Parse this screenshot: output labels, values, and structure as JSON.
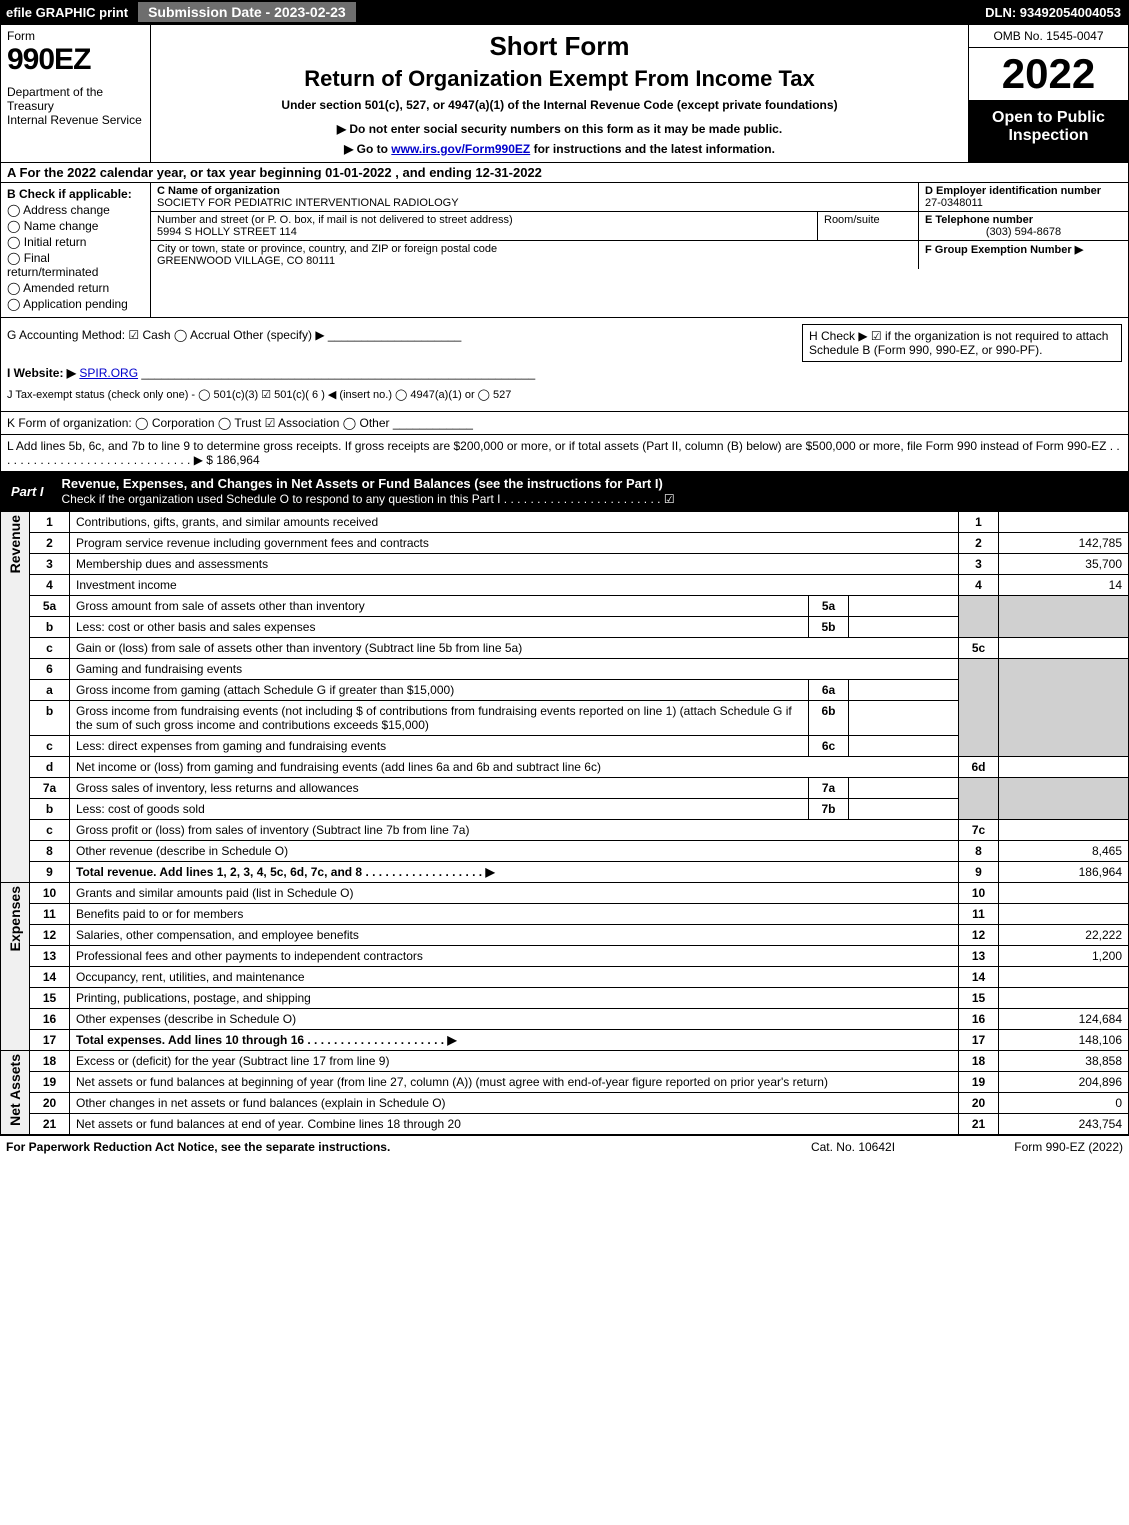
{
  "topbar": {
    "efile": "efile GRAPHIC print",
    "submission": "Submission Date - 2023-02-23",
    "dln": "DLN: 93492054004053"
  },
  "header": {
    "form_label": "Form",
    "form_number": "990EZ",
    "dept": "Department of the Treasury\nInternal Revenue Service",
    "short": "Short Form",
    "title": "Return of Organization Exempt From Income Tax",
    "sub1": "Under section 501(c), 527, or 4947(a)(1) of the Internal Revenue Code (except private foundations)",
    "sub2": "▶ Do not enter social security numbers on this form as it may be made public.",
    "sub3_pre": "▶ Go to ",
    "sub3_link": "www.irs.gov/Form990EZ",
    "sub3_post": " for instructions and the latest information.",
    "omb": "OMB No. 1545-0047",
    "year": "2022",
    "open": "Open to Public Inspection"
  },
  "row_a": "A  For the 2022 calendar year, or tax year beginning 01-01-2022  , and ending 12-31-2022",
  "col_b": {
    "label": "B  Check if applicable:",
    "opts": [
      "Address change",
      "Name change",
      "Initial return",
      "Final return/terminated",
      "Amended return",
      "Application pending"
    ]
  },
  "col_c": {
    "name_label": "C Name of organization",
    "name": "SOCIETY FOR PEDIATRIC INTERVENTIONAL RADIOLOGY",
    "street_label": "Number and street (or P. O. box, if mail is not delivered to street address)",
    "street": "5994 S HOLLY STREET 114",
    "room_label": "Room/suite",
    "city_label": "City or town, state or province, country, and ZIP or foreign postal code",
    "city": "GREENWOOD VILLAGE, CO  80111"
  },
  "col_d": {
    "label": "D Employer identification number",
    "value": "27-0348011"
  },
  "col_e": {
    "label": "E Telephone number",
    "value": "(303) 594-8678"
  },
  "col_f": {
    "label": "F Group Exemption Number  ▶",
    "value": ""
  },
  "row_g": "G Accounting Method:   ☑ Cash  ◯ Accrual  Other (specify) ▶ ____________________",
  "box_h": "H  Check ▶  ☑  if the organization is not required to attach Schedule B (Form 990, 990-EZ, or 990-PF).",
  "row_i_label": "I Website: ▶",
  "row_i_link": "SPIR.ORG",
  "row_j": "J Tax-exempt status (check only one) - ◯ 501(c)(3) ☑ 501(c)( 6 ) ◀ (insert no.) ◯ 4947(a)(1) or ◯ 527",
  "row_k": "K Form of organization:  ◯ Corporation  ◯ Trust  ☑ Association  ◯ Other  ____________",
  "row_l": "L Add lines 5b, 6c, and 7b to line 9 to determine gross receipts. If gross receipts are $200,000 or more, or if total assets (Part II, column (B) below) are $500,000 or more, file Form 990 instead of Form 990-EZ  . . . . . . . . . . . . . . . . . . . . . . . . . . . . . . ▶ $ 186,964",
  "part1": {
    "label": "Part I",
    "title": "Revenue, Expenses, and Changes in Net Assets or Fund Balances (see the instructions for Part I)",
    "subtitle": "Check if the organization used Schedule O to respond to any question in this Part I . . . . . . . . . . . . . . . . . . . . . . . . ☑"
  },
  "sections": {
    "revenue": "Revenue",
    "expenses": "Expenses",
    "netassets": "Net Assets"
  },
  "lines": {
    "l1": {
      "n": "1",
      "d": "Contributions, gifts, grants, and similar amounts received",
      "rn": "1",
      "v": ""
    },
    "l2": {
      "n": "2",
      "d": "Program service revenue including government fees and contracts",
      "rn": "2",
      "v": "142,785"
    },
    "l3": {
      "n": "3",
      "d": "Membership dues and assessments",
      "rn": "3",
      "v": "35,700"
    },
    "l4": {
      "n": "4",
      "d": "Investment income",
      "rn": "4",
      "v": "14"
    },
    "l5a": {
      "n": "5a",
      "d": "Gross amount from sale of assets other than inventory",
      "sn": "5a",
      "sv": ""
    },
    "l5b": {
      "n": "b",
      "d": "Less: cost or other basis and sales expenses",
      "sn": "5b",
      "sv": ""
    },
    "l5c": {
      "n": "c",
      "d": "Gain or (loss) from sale of assets other than inventory (Subtract line 5b from line 5a)",
      "rn": "5c",
      "v": ""
    },
    "l6": {
      "n": "6",
      "d": "Gaming and fundraising events"
    },
    "l6a": {
      "n": "a",
      "d": "Gross income from gaming (attach Schedule G if greater than $15,000)",
      "sn": "6a",
      "sv": ""
    },
    "l6b": {
      "n": "b",
      "d": "Gross income from fundraising events (not including $                       of contributions from fundraising events reported on line 1) (attach Schedule G if the sum of such gross income and contributions exceeds $15,000)",
      "sn": "6b",
      "sv": ""
    },
    "l6c": {
      "n": "c",
      "d": "Less: direct expenses from gaming and fundraising events",
      "sn": "6c",
      "sv": ""
    },
    "l6d": {
      "n": "d",
      "d": "Net income or (loss) from gaming and fundraising events (add lines 6a and 6b and subtract line 6c)",
      "rn": "6d",
      "v": ""
    },
    "l7a": {
      "n": "7a",
      "d": "Gross sales of inventory, less returns and allowances",
      "sn": "7a",
      "sv": ""
    },
    "l7b": {
      "n": "b",
      "d": "Less: cost of goods sold",
      "sn": "7b",
      "sv": ""
    },
    "l7c": {
      "n": "c",
      "d": "Gross profit or (loss) from sales of inventory (Subtract line 7b from line 7a)",
      "rn": "7c",
      "v": ""
    },
    "l8": {
      "n": "8",
      "d": "Other revenue (describe in Schedule O)",
      "rn": "8",
      "v": "8,465"
    },
    "l9": {
      "n": "9",
      "d": "Total revenue. Add lines 1, 2, 3, 4, 5c, 6d, 7c, and 8   . . . . . . . . . . . . . . . . . . ▶",
      "rn": "9",
      "v": "186,964"
    },
    "l10": {
      "n": "10",
      "d": "Grants and similar amounts paid (list in Schedule O)",
      "rn": "10",
      "v": ""
    },
    "l11": {
      "n": "11",
      "d": "Benefits paid to or for members",
      "rn": "11",
      "v": ""
    },
    "l12": {
      "n": "12",
      "d": "Salaries, other compensation, and employee benefits",
      "rn": "12",
      "v": "22,222"
    },
    "l13": {
      "n": "13",
      "d": "Professional fees and other payments to independent contractors",
      "rn": "13",
      "v": "1,200"
    },
    "l14": {
      "n": "14",
      "d": "Occupancy, rent, utilities, and maintenance",
      "rn": "14",
      "v": ""
    },
    "l15": {
      "n": "15",
      "d": "Printing, publications, postage, and shipping",
      "rn": "15",
      "v": ""
    },
    "l16": {
      "n": "16",
      "d": "Other expenses (describe in Schedule O)",
      "rn": "16",
      "v": "124,684"
    },
    "l17": {
      "n": "17",
      "d": "Total expenses. Add lines 10 through 16   . . . . . . . . . . . . . . . . . . . . . ▶",
      "rn": "17",
      "v": "148,106"
    },
    "l18": {
      "n": "18",
      "d": "Excess or (deficit) for the year (Subtract line 17 from line 9)",
      "rn": "18",
      "v": "38,858"
    },
    "l19": {
      "n": "19",
      "d": "Net assets or fund balances at beginning of year (from line 27, column (A)) (must agree with end-of-year figure reported on prior year's return)",
      "rn": "19",
      "v": "204,896"
    },
    "l20": {
      "n": "20",
      "d": "Other changes in net assets or fund balances (explain in Schedule O)",
      "rn": "20",
      "v": "0"
    },
    "l21": {
      "n": "21",
      "d": "Net assets or fund balances at end of year. Combine lines 18 through 20",
      "rn": "21",
      "v": "243,754"
    }
  },
  "footer": {
    "left": "For Paperwork Reduction Act Notice, see the separate instructions.",
    "mid": "Cat. No. 10642I",
    "right": "Form 990-EZ (2022)"
  }
}
